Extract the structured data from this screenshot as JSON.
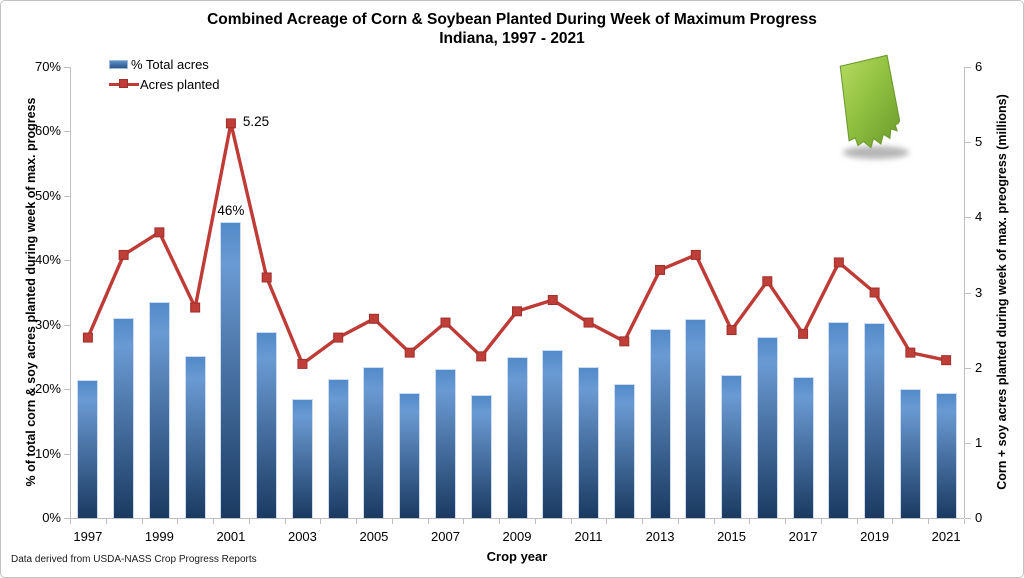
{
  "title": {
    "line1": "Combined Acreage of Corn & Soybean Planted During Week of Maximum Progress",
    "line2": "Indiana, 1997 - 2021"
  },
  "legend": [
    {
      "label": "% Total acres",
      "swatch": "blue-bar"
    },
    {
      "label": "Acres planted",
      "swatch": "red-line-square"
    }
  ],
  "footer": "Data derived from USDA-NASS Crop Progress Reports",
  "state_icon": {
    "label": "IN",
    "fill_top": "#aed65a",
    "fill_bottom": "#77a634"
  },
  "chart_data": {
    "type": "combo",
    "combo_types": [
      "bar",
      "line"
    ],
    "categories": [
      1997,
      1998,
      1999,
      2000,
      2001,
      2002,
      2003,
      2004,
      2005,
      2006,
      2007,
      2008,
      2009,
      2010,
      2011,
      2012,
      2013,
      2014,
      2015,
      2016,
      2017,
      2018,
      2019,
      2020,
      2021
    ],
    "series": [
      {
        "name": "% Total acres",
        "type": "bar",
        "axis": "left",
        "values": [
          21.4,
          31.0,
          33.5,
          25.1,
          46.0,
          28.9,
          18.5,
          21.5,
          23.4,
          19.4,
          23.1,
          19.1,
          25.0,
          26.1,
          23.4,
          20.8,
          29.3,
          30.9,
          22.2,
          28.1,
          21.9,
          30.4,
          30.3,
          20.0,
          19.4
        ]
      },
      {
        "name": "Acres planted",
        "type": "line",
        "axis": "right",
        "values": [
          2.4,
          3.5,
          3.8,
          2.8,
          5.25,
          3.2,
          2.05,
          2.4,
          2.65,
          2.2,
          2.6,
          2.15,
          2.75,
          2.9,
          2.6,
          2.35,
          3.3,
          3.5,
          2.5,
          3.15,
          2.45,
          3.4,
          3.0,
          2.2,
          2.1
        ]
      }
    ],
    "axes": {
      "left": {
        "title": "% of total corn & soy acres planted during week of max. progress",
        "min": 0,
        "max": 70,
        "ticks": [
          "0%",
          "10%",
          "20%",
          "30%",
          "40%",
          "50%",
          "60%",
          "70%"
        ]
      },
      "right": {
        "title": "Corn + soy acres planted during week of max. preogress (millions)",
        "min": 0,
        "max": 6,
        "ticks": [
          "0",
          "1",
          "2",
          "3",
          "4",
          "5",
          "6"
        ]
      },
      "x": {
        "title": "Crop year",
        "labeled_years": [
          1997,
          1999,
          2001,
          2003,
          2005,
          2007,
          2009,
          2011,
          2013,
          2015,
          2017,
          2019,
          2021
        ]
      }
    },
    "annotations": [
      {
        "on": "line",
        "year": 2001,
        "text": "5.25"
      },
      {
        "on": "bar",
        "year": 2001,
        "text": "46%"
      }
    ],
    "colors": {
      "bar_top": "#528ac9",
      "bar_bottom": "#1a3a61",
      "line": "#be3b36",
      "marker": "#c03e38",
      "axis": "#bfbfbf"
    },
    "grid": false,
    "legend_position": "top-left"
  }
}
